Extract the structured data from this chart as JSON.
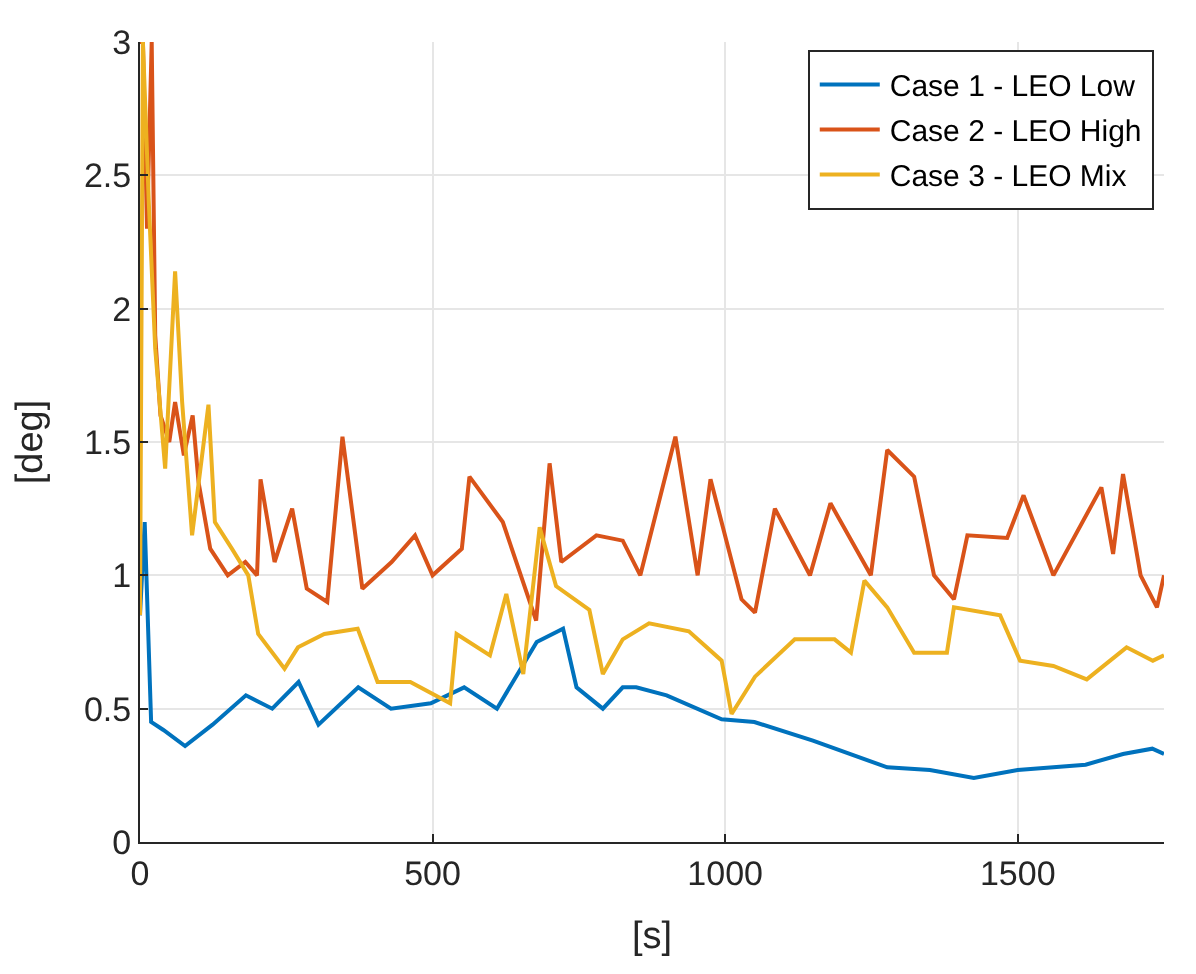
{
  "chart_data": {
    "type": "line",
    "xlabel": "[s]",
    "ylabel": "[deg]",
    "xlim": [
      0,
      1750
    ],
    "xticks": [
      0,
      500,
      1000,
      1500
    ],
    "ylim": [
      0,
      3
    ],
    "yticks": [
      0,
      0.5,
      1,
      1.5,
      2,
      2.5,
      3
    ],
    "grid": true,
    "legend": "top right",
    "marker": "none",
    "line_style": "solid",
    "series": [
      {
        "name": "Case 1 - LEO Low",
        "color": "#0072bd",
        "x": [
          0,
          8,
          19,
          40,
          77,
          124,
          181,
          226,
          271,
          305,
          373,
          429,
          497,
          554,
          610,
          678,
          723,
          746,
          791,
          825,
          848,
          900,
          994,
          1050,
          1150,
          1277,
          1350,
          1425,
          1500,
          1616,
          1680,
          1730,
          1750
        ],
        "values": [
          0.85,
          1.2,
          0.45,
          0.42,
          0.36,
          0.44,
          0.55,
          0.5,
          0.6,
          0.44,
          0.58,
          0.5,
          0.52,
          0.58,
          0.5,
          0.75,
          0.8,
          0.58,
          0.5,
          0.58,
          0.58,
          0.55,
          0.46,
          0.45,
          0.38,
          0.28,
          0.27,
          0.24,
          0.27,
          0.29,
          0.33,
          0.35,
          0.33
        ]
      },
      {
        "name": "Case 2 - LEO High",
        "color": "#d95319",
        "x": [
          0,
          5,
          12,
          20,
          26,
          35,
          50,
          60,
          75,
          90,
          100,
          120,
          150,
          180,
          200,
          206,
          230,
          260,
          285,
          320,
          346,
          380,
          430,
          470,
          500,
          550,
          563,
          620,
          677,
          700,
          720,
          780,
          825,
          855,
          915,
          953,
          975,
          1028,
          1051,
          1085,
          1145,
          1180,
          1249,
          1277,
          1323,
          1357,
          1391,
          1414,
          1482,
          1510,
          1561,
          1643,
          1663,
          1680,
          1710,
          1738,
          1750
        ],
        "values": [
          3,
          3,
          2.3,
          3,
          1.9,
          1.6,
          1.5,
          1.65,
          1.45,
          1.6,
          1.35,
          1.1,
          1.0,
          1.05,
          1.0,
          1.36,
          1.05,
          1.25,
          0.95,
          0.9,
          1.52,
          0.95,
          1.05,
          1.15,
          1.0,
          1.1,
          1.37,
          1.2,
          0.83,
          1.42,
          1.05,
          1.15,
          1.13,
          1.0,
          1.52,
          1.0,
          1.36,
          0.91,
          0.86,
          1.25,
          1.0,
          1.27,
          1.0,
          1.47,
          1.37,
          1.0,
          0.91,
          1.15,
          1.14,
          1.3,
          1.0,
          1.33,
          1.08,
          1.38,
          1.0,
          0.88,
          1.0
        ]
      },
      {
        "name": "Case 3 - LEO Mix",
        "color": "#edb120",
        "x": [
          0,
          5,
          15,
          26,
          43,
          60,
          72,
          89,
          117,
          128,
          157,
          185,
          202,
          247,
          270,
          315,
          372,
          406,
          462,
          530,
          541,
          598,
          626,
          655,
          683,
          711,
          768,
          791,
          825,
          870,
          938,
          994,
          1011,
          1051,
          1119,
          1187,
          1215,
          1238,
          1277,
          1323,
          1379,
          1391,
          1470,
          1504,
          1561,
          1618,
          1686,
          1731,
          1750
        ],
        "values": [
          0.85,
          3,
          2.4,
          1.85,
          1.4,
          2.14,
          1.65,
          1.15,
          1.64,
          1.2,
          1.1,
          1.0,
          0.78,
          0.65,
          0.73,
          0.78,
          0.8,
          0.6,
          0.6,
          0.52,
          0.78,
          0.7,
          0.93,
          0.63,
          1.18,
          0.96,
          0.87,
          0.63,
          0.76,
          0.82,
          0.79,
          0.68,
          0.48,
          0.62,
          0.76,
          0.76,
          0.71,
          0.98,
          0.88,
          0.71,
          0.71,
          0.88,
          0.85,
          0.68,
          0.66,
          0.61,
          0.73,
          0.68,
          0.7
        ]
      }
    ]
  }
}
